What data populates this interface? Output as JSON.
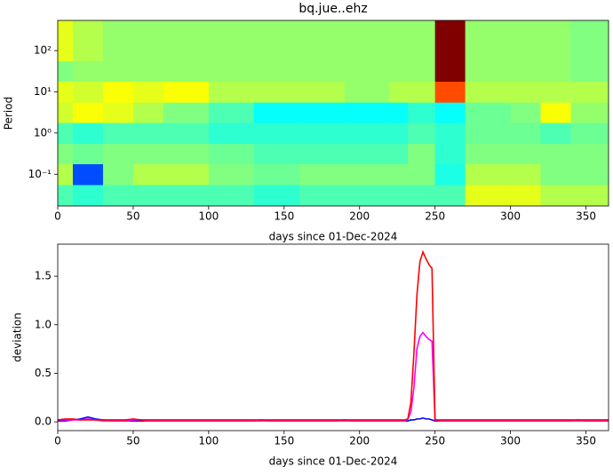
{
  "chart_data": [
    {
      "type": "heatmap",
      "title": "bq.jue..ehz",
      "xlabel": "days since 01-Dec-2024",
      "ylabel": "Period",
      "log_y": true,
      "colormap": "jet",
      "zlim": [
        0,
        1
      ],
      "xlim": [
        0,
        365
      ],
      "xticks": [
        0,
        50,
        100,
        150,
        200,
        250,
        300,
        350
      ],
      "ylim": [
        0.017,
        540
      ],
      "yticks": [
        {
          "value": 0.1,
          "label": "10⁻¹"
        },
        {
          "value": 1,
          "label": "10⁰"
        },
        {
          "value": 10,
          "label": "10¹"
        },
        {
          "value": 100,
          "label": "10²"
        }
      ],
      "x_edges": [
        0,
        10,
        30,
        50,
        70,
        100,
        130,
        160,
        190,
        220,
        232,
        250,
        270,
        300,
        320,
        340,
        365
      ],
      "y_edges": [
        0.017,
        0.056,
        0.18,
        0.56,
        1.8,
        5.6,
        18,
        56,
        540
      ],
      "z": [
        [
          0.45,
          0.42,
          0.45,
          0.45,
          0.45,
          0.45,
          0.42,
          0.45,
          0.45,
          0.45,
          0.45,
          0.45,
          0.6,
          0.6,
          0.55,
          0.55
        ],
        [
          0.55,
          0.2,
          0.5,
          0.55,
          0.55,
          0.5,
          0.48,
          0.5,
          0.5,
          0.5,
          0.5,
          0.4,
          0.55,
          0.55,
          0.5,
          0.5
        ],
        [
          0.5,
          0.48,
          0.5,
          0.5,
          0.5,
          0.48,
          0.45,
          0.45,
          0.45,
          0.45,
          0.5,
          0.42,
          0.5,
          0.5,
          0.5,
          0.5
        ],
        [
          0.45,
          0.42,
          0.45,
          0.45,
          0.45,
          0.42,
          0.42,
          0.42,
          0.42,
          0.42,
          0.45,
          0.42,
          0.48,
          0.48,
          0.45,
          0.48
        ],
        [
          0.58,
          0.62,
          0.6,
          0.55,
          0.5,
          0.45,
          0.38,
          0.38,
          0.38,
          0.38,
          0.42,
          0.38,
          0.48,
          0.5,
          0.62,
          0.52
        ],
        [
          0.6,
          0.58,
          0.62,
          0.6,
          0.62,
          0.55,
          0.55,
          0.55,
          0.52,
          0.55,
          0.55,
          0.8,
          0.55,
          0.55,
          0.55,
          0.55
        ],
        [
          0.5,
          0.52,
          0.52,
          0.52,
          0.52,
          0.52,
          0.52,
          0.52,
          0.52,
          0.52,
          0.52,
          1.0,
          0.52,
          0.52,
          0.52,
          0.5
        ],
        [
          0.6,
          0.55,
          0.52,
          0.52,
          0.52,
          0.52,
          0.52,
          0.52,
          0.52,
          0.52,
          0.52,
          1.0,
          0.52,
          0.52,
          0.52,
          0.5
        ]
      ]
    },
    {
      "type": "line",
      "xlabel": "days since 01-Dec-2024",
      "ylabel": "deviation",
      "xlim": [
        0,
        365
      ],
      "xticks": [
        0,
        50,
        100,
        150,
        200,
        250,
        300,
        350
      ],
      "ylim": [
        -0.09,
        1.83
      ],
      "yticks": [
        {
          "value": 0,
          "label": "0.0"
        },
        {
          "value": 0.5,
          "label": "0.5"
        },
        {
          "value": 1,
          "label": "1.0"
        },
        {
          "value": 1.5,
          "label": "1.5"
        }
      ],
      "x": [
        0,
        5,
        10,
        15,
        20,
        25,
        30,
        35,
        40,
        45,
        50,
        55,
        60,
        65,
        70,
        75,
        80,
        85,
        90,
        95,
        100,
        105,
        110,
        115,
        120,
        125,
        130,
        135,
        140,
        145,
        150,
        155,
        160,
        165,
        170,
        175,
        180,
        185,
        190,
        195,
        200,
        205,
        210,
        215,
        220,
        225,
        230,
        232,
        234,
        236,
        238,
        240,
        242,
        244,
        246,
        248,
        250,
        255,
        260,
        265,
        270,
        275,
        280,
        285,
        290,
        295,
        300,
        305,
        310,
        315,
        320,
        325,
        330,
        335,
        340,
        345,
        350,
        355,
        360,
        365
      ],
      "series": [
        {
          "color": "#0000ff",
          "values": [
            0.01,
            0.01,
            0.02,
            0.03,
            0.05,
            0.03,
            0.02,
            0.01,
            0.01,
            0.01,
            0.01,
            0.01,
            0.01,
            0.01,
            0.01,
            0.01,
            0.01,
            0.01,
            0.01,
            0.01,
            0.01,
            0.01,
            0.01,
            0.01,
            0.01,
            0.01,
            0.01,
            0.02,
            0.01,
            0.01,
            0.01,
            0.01,
            0.01,
            0.01,
            0.01,
            0.01,
            0.01,
            0.01,
            0.02,
            0.01,
            0.01,
            0.01,
            0.01,
            0.01,
            0.01,
            0.01,
            0.01,
            0.01,
            0.02,
            0.02,
            0.03,
            0.03,
            0.04,
            0.03,
            0.03,
            0.02,
            0.01,
            0.01,
            0.01,
            0.01,
            0.01,
            0.01,
            0.01,
            0.01,
            0.01,
            0.01,
            0.01,
            0.01,
            0.01,
            0.01,
            0.01,
            0.01,
            0.01,
            0.01,
            0.01,
            0.02,
            0.01,
            0.01,
            0.01,
            0.01
          ]
        },
        {
          "color": "#ff00ff",
          "values": [
            0.02,
            0.02,
            0.02,
            0.02,
            0.03,
            0.02,
            0.01,
            0.01,
            0.01,
            0.01,
            0.02,
            0.02,
            0.01,
            0.01,
            0.01,
            0.01,
            0.01,
            0.01,
            0.01,
            0.01,
            0.01,
            0.01,
            0.01,
            0.01,
            0.01,
            0.01,
            0.01,
            0.01,
            0.01,
            0.01,
            0.01,
            0.01,
            0.01,
            0.01,
            0.01,
            0.01,
            0.01,
            0.01,
            0.01,
            0.01,
            0.01,
            0.01,
            0.01,
            0.01,
            0.01,
            0.01,
            0.01,
            0.03,
            0.1,
            0.35,
            0.75,
            0.88,
            0.92,
            0.88,
            0.85,
            0.83,
            0.02,
            0.01,
            0.01,
            0.01,
            0.01,
            0.01,
            0.01,
            0.01,
            0.01,
            0.01,
            0.01,
            0.01,
            0.01,
            0.01,
            0.01,
            0.01,
            0.01,
            0.01,
            0.01,
            0.01,
            0.01,
            0.01,
            0.01,
            0.01
          ]
        },
        {
          "color": "#ff0000",
          "values": [
            0.02,
            0.03,
            0.03,
            0.02,
            0.02,
            0.02,
            0.02,
            0.02,
            0.02,
            0.02,
            0.03,
            0.02,
            0.02,
            0.02,
            0.02,
            0.02,
            0.02,
            0.02,
            0.02,
            0.02,
            0.02,
            0.02,
            0.02,
            0.02,
            0.02,
            0.02,
            0.02,
            0.02,
            0.02,
            0.02,
            0.02,
            0.02,
            0.02,
            0.02,
            0.02,
            0.02,
            0.02,
            0.02,
            0.02,
            0.02,
            0.02,
            0.02,
            0.02,
            0.02,
            0.02,
            0.02,
            0.02,
            0.03,
            0.2,
            0.7,
            1.3,
            1.65,
            1.75,
            1.68,
            1.62,
            1.58,
            0.02,
            0.02,
            0.02,
            0.02,
            0.02,
            0.02,
            0.02,
            0.02,
            0.02,
            0.02,
            0.02,
            0.02,
            0.02,
            0.02,
            0.02,
            0.02,
            0.02,
            0.02,
            0.02,
            0.02,
            0.02,
            0.02,
            0.02,
            0.02
          ]
        }
      ]
    }
  ]
}
